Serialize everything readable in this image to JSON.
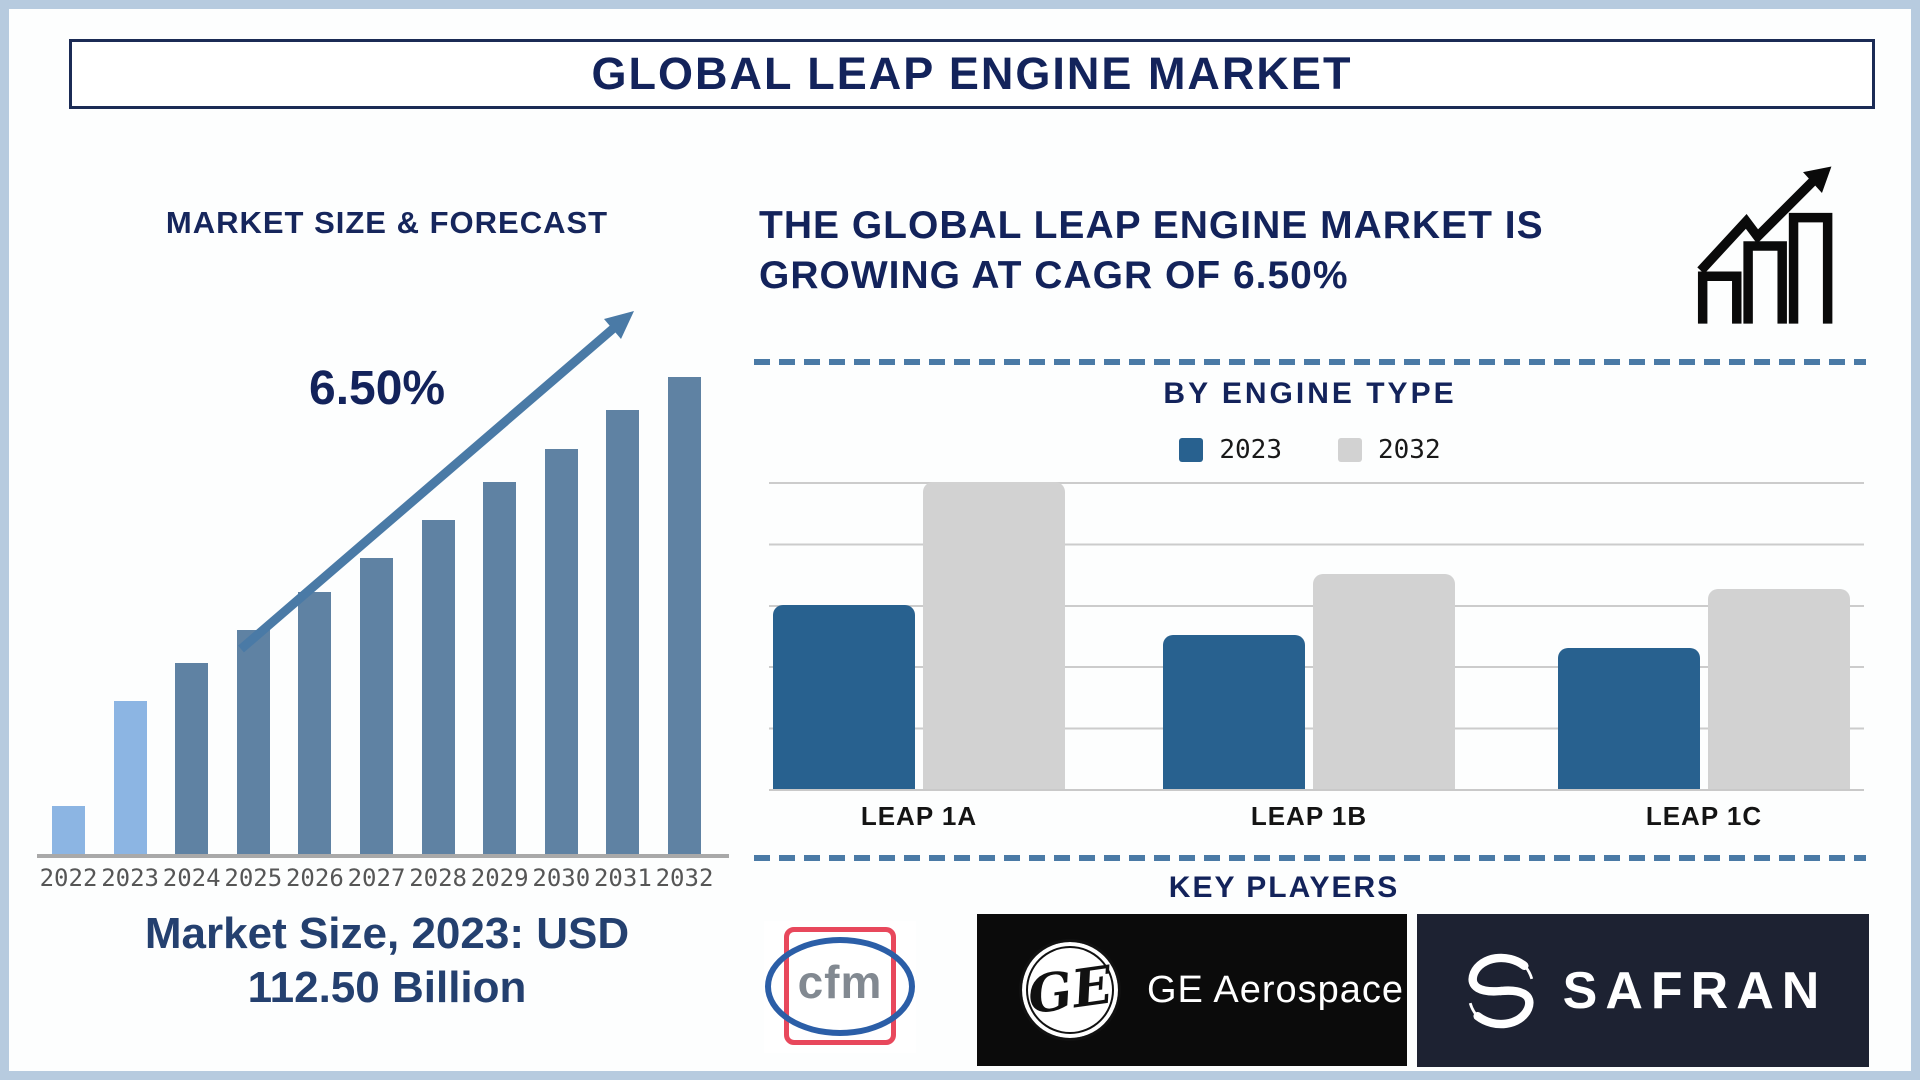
{
  "page": {
    "frame_color": "#b7cbdf",
    "title": "GLOBAL LEAP ENGINE MARKET"
  },
  "left_panel": {
    "heading": "MARKET SIZE & FORECAST",
    "cagr_annotation": "6.50%",
    "caption_line1": "Market Size, 2023: USD",
    "caption_line2": "112.50 Billion"
  },
  "right_panel": {
    "headline_line1": "THE GLOBAL LEAP ENGINE MARKET IS",
    "headline_line2": "GROWING AT CAGR OF 6.50%",
    "section_by_engine": "BY ENGINE TYPE",
    "section_key_players": "KEY PLAYERS"
  },
  "key_players": [
    {
      "name": "CFM International",
      "logo_text": "cfm"
    },
    {
      "name": "GE Aerospace",
      "logo_text": "GE Aerospace",
      "monogram": "GE"
    },
    {
      "name": "Safran",
      "logo_text": "SAFRAN"
    }
  ],
  "chart_data": [
    {
      "type": "bar",
      "title": "MARKET SIZE & FORECAST",
      "x": [
        "2022",
        "2023",
        "2024",
        "2025",
        "2026",
        "2027",
        "2028",
        "2029",
        "2030",
        "2031",
        "2032"
      ],
      "values": [
        10,
        32,
        40,
        47,
        55,
        62,
        70,
        78,
        85,
        93,
        100
      ],
      "values_note": "bar heights as percent of tallest bar (2032); no y-axis shown",
      "known_points": {
        "2023": "USD 112.50 Billion"
      },
      "cagr": "6.50%",
      "annotation": "6.50% with rising trend arrow",
      "bar_color": "#5f82a3",
      "highlight_color": "#8cb5e3",
      "highlight_years": [
        "2022",
        "2023"
      ],
      "xlabel": "",
      "ylabel": ""
    },
    {
      "type": "grouped_bar",
      "title": "BY ENGINE TYPE",
      "categories": [
        "LEAP 1A",
        "LEAP 1B",
        "LEAP 1C"
      ],
      "series": [
        {
          "name": "2023",
          "color": "#28618f",
          "values": [
            60,
            50,
            46
          ]
        },
        {
          "name": "2032",
          "color": "#d2d2d2",
          "values": [
            100,
            70,
            65
          ]
        }
      ],
      "values_note": "estimated on 0-100 scale; top gridline = 100; y-axis unlabeled",
      "ylim": [
        0,
        100
      ],
      "gridlines": "horizontal, every 20 units",
      "legend_position": "top-center"
    }
  ]
}
